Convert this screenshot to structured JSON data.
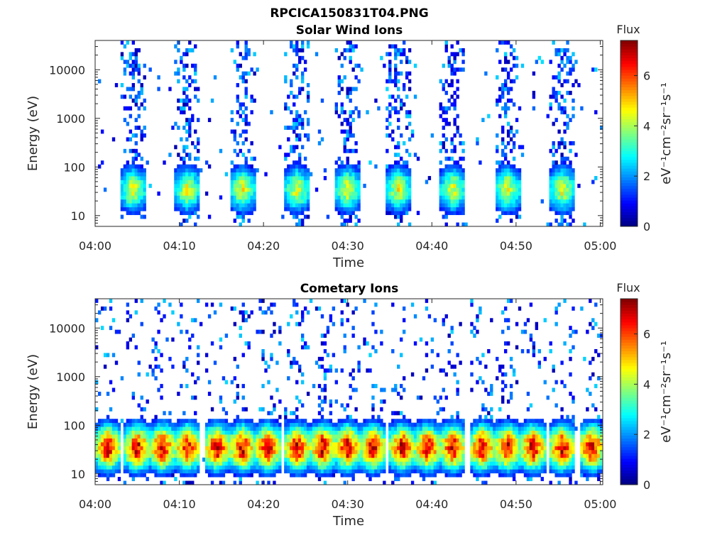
{
  "figure": {
    "title": "RPCICA150831T04.PNG",
    "colorbar_title": "Flux",
    "colorbar_label": "eV⁻¹cm⁻²sr⁻¹s⁻¹",
    "colormap": [
      "#00007f",
      "#0000ff",
      "#007fff",
      "#00ffff",
      "#7fff7f",
      "#ffff00",
      "#ff7f00",
      "#ff0000",
      "#7f0000"
    ]
  },
  "chart_data": [
    {
      "type": "heatmap",
      "title": "Solar Wind Ions",
      "xlabel": "Time",
      "ylabel": "Energy (eV)",
      "x_ticks": [
        "04:00",
        "04:10",
        "04:20",
        "04:30",
        "04:40",
        "04:50",
        "05:00"
      ],
      "y_ticks": [
        "10",
        "100",
        "1000",
        "10000"
      ],
      "y_scale": "log",
      "y_range": [
        6,
        40000
      ],
      "x_range_minutes": [
        0,
        60.3
      ],
      "colorbar_ticks": [
        "0",
        "2",
        "4",
        "6"
      ],
      "colorbar_range": [
        0,
        7.4
      ],
      "sweep_centers_minutes": [
        4.5,
        11,
        17.5,
        24,
        30,
        36,
        42.5,
        49,
        55.5
      ],
      "sweep_width_minutes": 3,
      "peak_energy_ev": 35,
      "peak_flux": 4.8
    },
    {
      "type": "heatmap",
      "title": "Cometary Ions",
      "xlabel": "Time",
      "ylabel": "Energy (eV)",
      "x_ticks": [
        "04:00",
        "04:10",
        "04:20",
        "04:30",
        "04:40",
        "04:50",
        "05:00"
      ],
      "y_ticks": [
        "10",
        "100",
        "1000",
        "10000"
      ],
      "y_scale": "log",
      "y_range": [
        6,
        40000
      ],
      "x_range_minutes": [
        0,
        60.3
      ],
      "colorbar_ticks": [
        "0",
        "2",
        "4",
        "6"
      ],
      "colorbar_range": [
        0,
        7.4
      ],
      "sweep_centers_minutes": [
        1.5,
        5,
        8,
        11,
        14.5,
        17.5,
        20.5,
        24,
        27,
        30,
        33,
        36.5,
        39.5,
        42.5,
        46,
        49,
        52,
        55.5,
        59
      ],
      "sweep_width_minutes": 3,
      "peak_energy_ev": 35,
      "peak_flux": 7.3
    }
  ]
}
